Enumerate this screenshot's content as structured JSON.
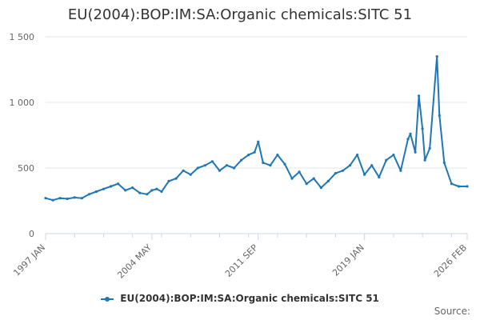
{
  "chart_data": {
    "type": "line",
    "title": "EU(2004):BOP:IM:SA:Organic chemicals:SITC 51",
    "xlabel": "",
    "ylabel": "",
    "ylim": [
      0,
      1500
    ],
    "yticks": [
      0,
      500,
      1000,
      1500
    ],
    "ytick_labels": [
      "0",
      "500",
      "1 000",
      "1 500"
    ],
    "xlim": [
      "1997-01",
      "2026-02"
    ],
    "xticks": [
      "1997-01",
      "2004-05",
      "2011-09",
      "2019-01",
      "2026-02"
    ],
    "xtick_labels": [
      "1997 JAN",
      "2004 MAY",
      "2011 SEP",
      "2019 JAN",
      "2026 FEB"
    ],
    "grid": true,
    "legend_position": "bottom",
    "color": "#1f77b4",
    "series": [
      {
        "name": "EU(2004):BOP:IM:SA:Organic chemicals:SITC 51",
        "x": [
          "1997-01",
          "1997-07",
          "1998-01",
          "1998-07",
          "1999-01",
          "1999-07",
          "2000-01",
          "2000-07",
          "2001-01",
          "2001-07",
          "2002-01",
          "2002-07",
          "2003-01",
          "2003-07",
          "2004-01",
          "2004-05",
          "2004-09",
          "2005-01",
          "2005-07",
          "2006-01",
          "2006-07",
          "2007-01",
          "2007-07",
          "2008-01",
          "2008-07",
          "2009-01",
          "2009-07",
          "2010-01",
          "2010-07",
          "2011-01",
          "2011-06",
          "2011-09",
          "2012-01",
          "2012-07",
          "2013-01",
          "2013-07",
          "2014-01",
          "2014-07",
          "2015-01",
          "2015-07",
          "2016-01",
          "2016-07",
          "2017-01",
          "2017-07",
          "2018-01",
          "2018-07",
          "2019-01",
          "2019-07",
          "2020-01",
          "2020-07",
          "2021-01",
          "2021-07",
          "2022-01",
          "2022-03",
          "2022-07",
          "2022-10",
          "2023-01",
          "2023-03",
          "2023-07",
          "2024-01",
          "2024-03",
          "2024-07",
          "2025-01",
          "2025-07",
          "2026-02"
        ],
        "values": [
          270,
          255,
          270,
          265,
          275,
          270,
          300,
          320,
          340,
          360,
          380,
          330,
          350,
          310,
          300,
          330,
          340,
          320,
          400,
          420,
          480,
          450,
          500,
          520,
          550,
          480,
          520,
          500,
          560,
          600,
          620,
          700,
          540,
          520,
          600,
          530,
          420,
          470,
          380,
          420,
          350,
          400,
          460,
          480,
          520,
          600,
          450,
          520,
          430,
          560,
          600,
          480,
          720,
          760,
          620,
          1050,
          800,
          560,
          650,
          1350,
          900,
          540,
          380,
          360,
          360
        ]
      }
    ]
  },
  "source_label": "Source:"
}
